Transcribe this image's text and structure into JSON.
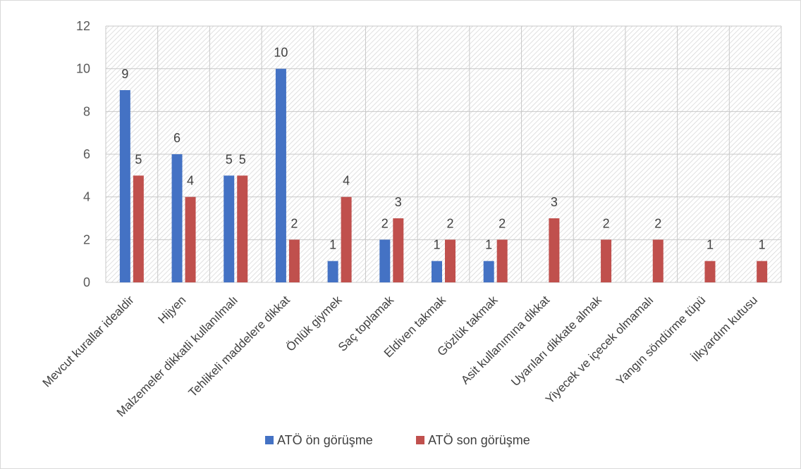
{
  "chart_data": {
    "type": "bar",
    "title": "",
    "xlabel": "",
    "ylabel": "",
    "ylim": [
      0,
      12
    ],
    "yticks": [
      0,
      2,
      4,
      6,
      8,
      10,
      12
    ],
    "grid": true,
    "legend_position": "bottom",
    "categories": [
      "Mevcut kurallar idealdir",
      "Hijyen",
      "Malzemeler dikkatli kullanılmalı",
      "Tehlikeli maddelere dikkat",
      "Önlük giymek",
      "Saç toplamak",
      "Eldiven takmak",
      "Gözlük takmak",
      "Asit kullanımına dikkat",
      "Uyarıları dikkate almak",
      "Yiyecek ve içecek olmamalı",
      "Yangın söndürme tüpü",
      "İlkyardım kutusu"
    ],
    "series": [
      {
        "name": "ATÖ ön görüşme",
        "color": "#4472C4",
        "values": [
          9,
          6,
          5,
          10,
          1,
          2,
          1,
          1,
          null,
          null,
          null,
          null,
          null
        ]
      },
      {
        "name": "ATÖ son görüşme",
        "color": "#C0504D",
        "values": [
          5,
          4,
          5,
          2,
          4,
          3,
          2,
          2,
          3,
          2,
          2,
          1,
          1
        ]
      }
    ]
  }
}
